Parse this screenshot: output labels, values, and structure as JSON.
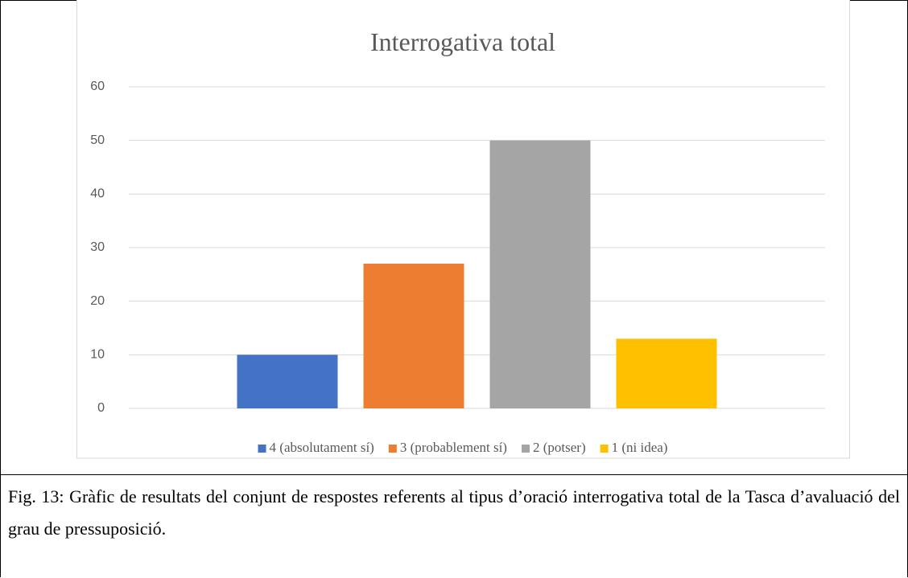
{
  "chart_data": {
    "type": "bar",
    "title": "Interrogativa total",
    "categories": [
      null
    ],
    "series": [
      {
        "name": "4 (absolutament sí)",
        "color": "#4472c4",
        "values": [
          10
        ]
      },
      {
        "name": "3 (probablement sí)",
        "color": "#ed7d31",
        "values": [
          27
        ]
      },
      {
        "name": "2 (potser)",
        "color": "#a5a5a5",
        "values": [
          50
        ]
      },
      {
        "name": "1 (ni idea)",
        "color": "#ffc000",
        "values": [
          13
        ]
      }
    ],
    "ylim": [
      0,
      60
    ],
    "yticks": [
      0,
      10,
      20,
      30,
      40,
      50,
      60
    ],
    "grid": true,
    "legend": "bottom"
  },
  "caption": "Fig. 13: Gràfic de resultats del conjunt de respostes referents al tipus d’oració interrogativa total de la Tasca d’avaluació del grau de pressuposició."
}
